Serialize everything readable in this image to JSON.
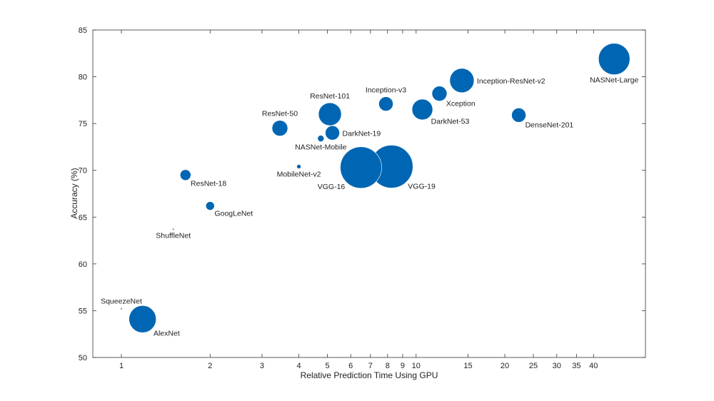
{
  "chart_data": {
    "type": "scatter",
    "title": "",
    "xlabel": "Relative Prediction Time Using GPU",
    "ylabel": "Accuracy (%)",
    "xscale": "log",
    "xlim": [
      0.8,
      60
    ],
    "ylim": [
      50,
      85
    ],
    "grid": false,
    "xticks": [
      1,
      2,
      3,
      4,
      5,
      6,
      7,
      8,
      9,
      10,
      15,
      20,
      25,
      30,
      35,
      40
    ],
    "yticks": [
      50,
      55,
      60,
      65,
      70,
      75,
      80,
      85
    ],
    "marker_color": "#0066b3",
    "size_encodes": "relative model size",
    "points": [
      {
        "name": "SqueezeNet",
        "x": 1.0,
        "y": 55.2,
        "size": 1.2,
        "label_pos": "above"
      },
      {
        "name": "AlexNet",
        "x": 1.18,
        "y": 54.1,
        "size": 19,
        "label_pos": "lower-right"
      },
      {
        "name": "ShuffleNet",
        "x": 1.5,
        "y": 63.7,
        "size": 1.2,
        "label_pos": "below"
      },
      {
        "name": "ResNet-18",
        "x": 1.65,
        "y": 69.5,
        "size": 7.5,
        "label_pos": "lower-right"
      },
      {
        "name": "GoogLeNet",
        "x": 2.0,
        "y": 66.2,
        "size": 6,
        "label_pos": "lower-right"
      },
      {
        "name": "ResNet-50",
        "x": 3.45,
        "y": 74.5,
        "size": 11,
        "label_pos": "above"
      },
      {
        "name": "MobileNet-v2",
        "x": 4.0,
        "y": 70.4,
        "size": 3,
        "label_pos": "below"
      },
      {
        "name": "NASNet-Mobile",
        "x": 4.75,
        "y": 73.4,
        "size": 4.5,
        "label_pos": "below"
      },
      {
        "name": "ResNet-101",
        "x": 5.1,
        "y": 76.0,
        "size": 16,
        "label_pos": "above"
      },
      {
        "name": "DarkNet-19",
        "x": 5.2,
        "y": 74.0,
        "size": 10,
        "label_pos": "right"
      },
      {
        "name": "VGG-16",
        "x": 6.5,
        "y": 70.3,
        "size": 29,
        "label_pos": "lower-left"
      },
      {
        "name": "Inception-v3",
        "x": 7.9,
        "y": 77.1,
        "size": 10,
        "label_pos": "above"
      },
      {
        "name": "VGG-19",
        "x": 8.25,
        "y": 70.4,
        "size": 30,
        "label_pos": "lower-right"
      },
      {
        "name": "DarkNet-53",
        "x": 10.5,
        "y": 76.5,
        "size": 14.5,
        "label_pos": "lower-right"
      },
      {
        "name": "Xception",
        "x": 12.0,
        "y": 78.2,
        "size": 10.5,
        "label_pos": "lower-right"
      },
      {
        "name": "Inception-ResNet-v2",
        "x": 14.3,
        "y": 79.6,
        "size": 17,
        "label_pos": "right"
      },
      {
        "name": "DenseNet-201",
        "x": 22.3,
        "y": 75.9,
        "size": 10,
        "label_pos": "lower-right"
      },
      {
        "name": "NASNet-Large",
        "x": 47.0,
        "y": 81.9,
        "size": 22,
        "label_pos": "below"
      }
    ]
  }
}
